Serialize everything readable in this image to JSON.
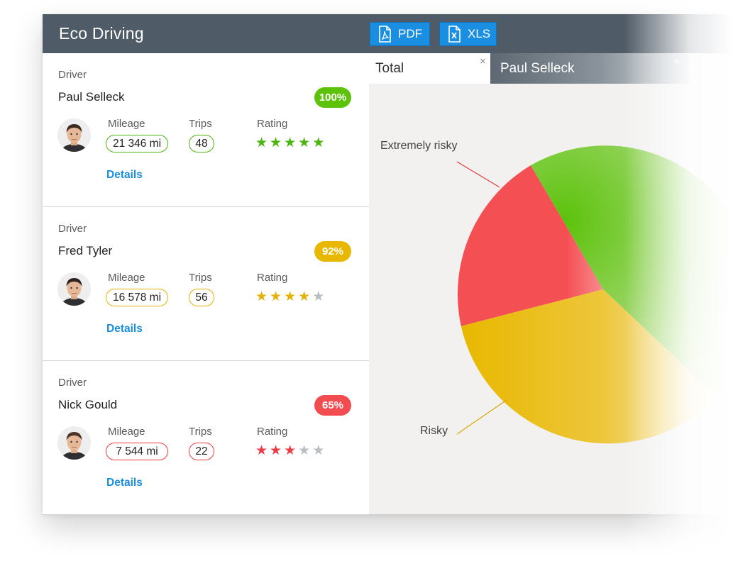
{
  "header": {
    "title": "Eco Driving",
    "pdf_label": "PDF",
    "xls_label": "XLS"
  },
  "drivers": [
    {
      "caption": "Driver",
      "name": "Paul Selleck",
      "score": "100%",
      "score_color": "#5cc20b",
      "mileage_label": "Mileage",
      "mileage": "21 346 mi",
      "trips_label": "Trips",
      "trips": "48",
      "rating_label": "Rating",
      "rating": 5,
      "rating_max": 5,
      "accent": "#4cb50e",
      "details": "Details"
    },
    {
      "caption": "Driver",
      "name": "Fred Tyler",
      "score": "92%",
      "score_color": "#e8b800",
      "mileage_label": "Mileage",
      "mileage": "16 578 mi",
      "trips_label": "Trips",
      "trips": "56",
      "rating_label": "Rating",
      "rating": 4,
      "rating_max": 5,
      "accent": "#e2b10a",
      "details": "Details"
    },
    {
      "caption": "Driver",
      "name": "Nick Gould",
      "score": "65%",
      "score_color": "#f24b50",
      "mileage_label": "Mileage",
      "mileage": "7 544 mi",
      "trips_label": "Trips",
      "trips": "22",
      "rating_label": "Rating",
      "rating": 3,
      "rating_max": 5,
      "accent": "#ef3b43",
      "details": "Details"
    }
  ],
  "tabs": [
    {
      "label": "Total",
      "close": "×"
    },
    {
      "label": "Paul Selleck",
      "close": "×"
    }
  ],
  "pie": {
    "labels": {
      "extremely_risky": "Extremely risky",
      "risky": "Risky"
    },
    "colors": {
      "green": "#5cc20b",
      "red": "#f45054",
      "yellow": "#e8b800"
    },
    "star_inactive_color": "#b9bcc0"
  }
}
